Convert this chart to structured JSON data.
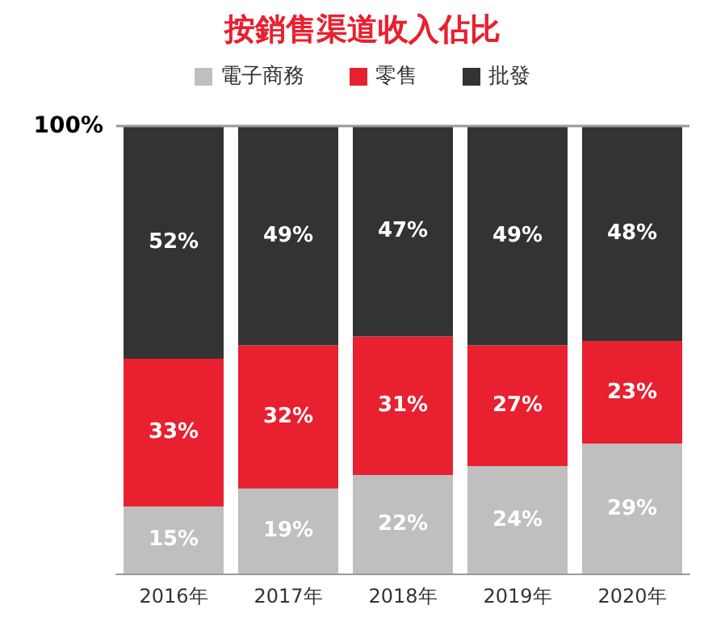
{
  "chart_data": {
    "type": "bar",
    "title": "按銷售渠道收入佔比",
    "stacked": true,
    "categories": [
      "2016年",
      "2017年",
      "2018年",
      "2019年",
      "2020年"
    ],
    "series": [
      {
        "name": "電子商務",
        "color": "#bfbfbf",
        "values": [
          15,
          19,
          22,
          24,
          29
        ],
        "value_labels": [
          "15%",
          "19%",
          "22%",
          "24%",
          "29%"
        ]
      },
      {
        "name": "零售",
        "color": "#e8202f",
        "values": [
          33,
          32,
          31,
          27,
          23
        ],
        "value_labels": [
          "33%",
          "32%",
          "31%",
          "27%",
          "23%"
        ]
      },
      {
        "name": "批發",
        "color": "#333333",
        "values": [
          52,
          49,
          47,
          49,
          48
        ],
        "value_labels": [
          "52%",
          "49%",
          "47%",
          "49%",
          "48%"
        ]
      }
    ],
    "ylim": [
      0,
      100
    ],
    "yticks": [
      {
        "value": 100,
        "label": "100%"
      }
    ],
    "ref_lines": [
      {
        "axis": "y",
        "value": 100,
        "color": "#999999"
      }
    ],
    "legend": "top"
  }
}
